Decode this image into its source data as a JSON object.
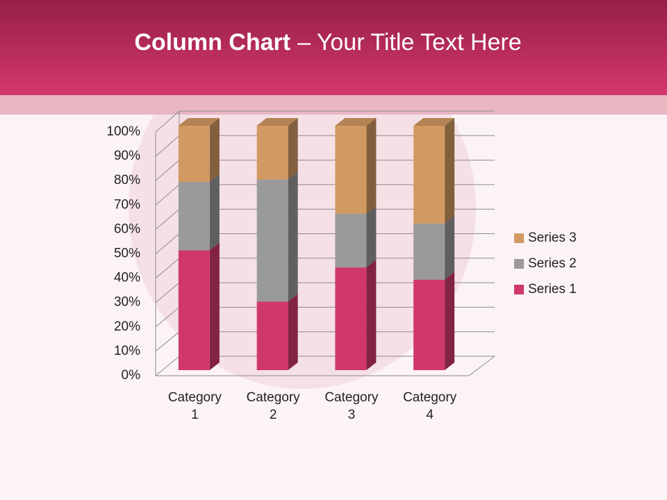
{
  "chart_data": {
    "type": "bar",
    "stacked": true,
    "three_d": true,
    "title_parts": [
      "Column Chart",
      "– Your Title Text Here"
    ],
    "categories": [
      "Category 1",
      "Category 2",
      "Category 3",
      "Category 4"
    ],
    "series": [
      {
        "name": "Series 1",
        "color": "#d1386a",
        "values": [
          49,
          28,
          42,
          37
        ]
      },
      {
        "name": "Series 2",
        "color": "#9a9a9a",
        "values": [
          28,
          50,
          22,
          23
        ]
      },
      {
        "name": "Series 3",
        "color": "#d29a62",
        "values": [
          23,
          22,
          36,
          40
        ]
      }
    ],
    "ylim": [
      0,
      100
    ],
    "yticks": [
      {
        "value": 0,
        "label": "0%"
      },
      {
        "value": 10,
        "label": "10%"
      },
      {
        "value": 20,
        "label": "20%"
      },
      {
        "value": 30,
        "label": "30%"
      },
      {
        "value": 40,
        "label": "40%"
      },
      {
        "value": 50,
        "label": "50%"
      },
      {
        "value": 60,
        "label": "60%"
      },
      {
        "value": 70,
        "label": "70%"
      },
      {
        "value": 80,
        "label": "80%"
      },
      {
        "value": 90,
        "label": "90%"
      },
      {
        "value": 100,
        "label": "100%"
      }
    ],
    "grid": true,
    "legend": "right"
  }
}
